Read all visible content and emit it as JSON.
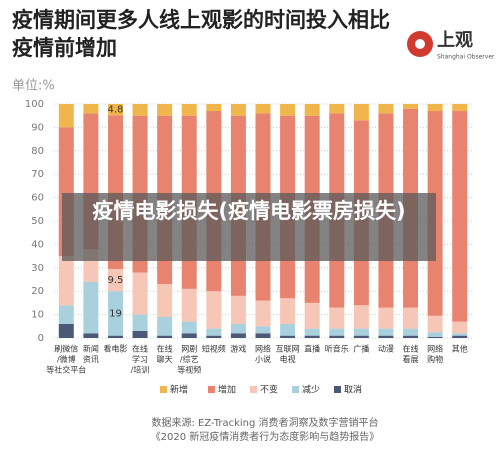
{
  "title": "疫情期间更多人线上观影的时间投入相比疫情前增加",
  "logo": {
    "name": "上观",
    "subtitle": "Shanghai Observer"
  },
  "overlay": "疫情电影损失(疫情电影票房损失)",
  "source": [
    "数据来源: EZ-Tracking 消费者洞察及数字营销平台",
    "《2020 新冠疫情消费者行为态度影响与趋势报告》"
  ],
  "chart_data": {
    "type": "stacked-bar",
    "ylabel": "单位:%",
    "categories": [
      [
        "刷微信",
        "/微博",
        "等社交平台"
      ],
      [
        "新闻",
        "资讯"
      ],
      [
        "看电影"
      ],
      [
        "在线",
        "学习",
        "/培训"
      ],
      [
        "在线",
        "聊天"
      ],
      [
        "网剧",
        "/综艺",
        "等视频"
      ],
      [
        "短视频"
      ],
      [
        "游戏"
      ],
      [
        "网络",
        "小说"
      ],
      [
        "互联网",
        "电视"
      ],
      [
        "直播"
      ],
      [
        "听音乐"
      ],
      [
        "广播"
      ],
      [
        "动漫"
      ],
      [
        "在线",
        "看展"
      ],
      [
        "网络",
        "购物"
      ],
      [
        "其他"
      ]
    ],
    "ylim": [
      0,
      100
    ],
    "yticks": [
      0,
      10,
      20,
      30,
      40,
      50,
      60,
      70,
      80,
      90,
      100
    ],
    "grid": true,
    "series": [
      {
        "name": "取消",
        "color": "#4b5878",
        "values": [
          6,
          2,
          1,
          3,
          1,
          2,
          1,
          2,
          2,
          1,
          1,
          1,
          1,
          1,
          1,
          0.5,
          1
        ]
      },
      {
        "name": "减少",
        "color": "#a9d0dd",
        "values": [
          8,
          22,
          19,
          7,
          8,
          5,
          3,
          4,
          3,
          5,
          3,
          3,
          3,
          3,
          3,
          2,
          1
        ],
        "value_labels": [
          null,
          null,
          "19",
          null,
          null,
          null,
          null,
          null,
          null,
          null,
          null,
          null,
          null,
          null,
          null,
          null,
          null
        ]
      },
      {
        "name": "不变",
        "color": "#f6c6b6",
        "values": [
          21,
          14,
          9.5,
          18,
          14,
          14,
          16,
          12,
          11,
          11,
          11,
          9,
          10,
          9,
          9,
          7,
          5
        ],
        "value_labels": [
          null,
          null,
          "9.5",
          null,
          null,
          null,
          null,
          null,
          null,
          null,
          null,
          null,
          null,
          null,
          null,
          null,
          null
        ]
      },
      {
        "name": "增加",
        "color": "#e8836f",
        "values": [
          55,
          58,
          65.7,
          67,
          72,
          74,
          77,
          77,
          80,
          78,
          80,
          83,
          79,
          83,
          85,
          87.5,
          90
        ]
      },
      {
        "name": "新增",
        "color": "#f1b64b",
        "values": [
          10,
          4,
          4.8,
          5,
          5,
          5,
          3,
          5,
          4,
          5,
          5,
          4,
          7,
          4,
          2,
          3,
          3
        ],
        "value_labels": [
          null,
          null,
          "4.8",
          null,
          null,
          null,
          null,
          null,
          null,
          null,
          null,
          null,
          null,
          null,
          null,
          null,
          null
        ]
      }
    ]
  }
}
